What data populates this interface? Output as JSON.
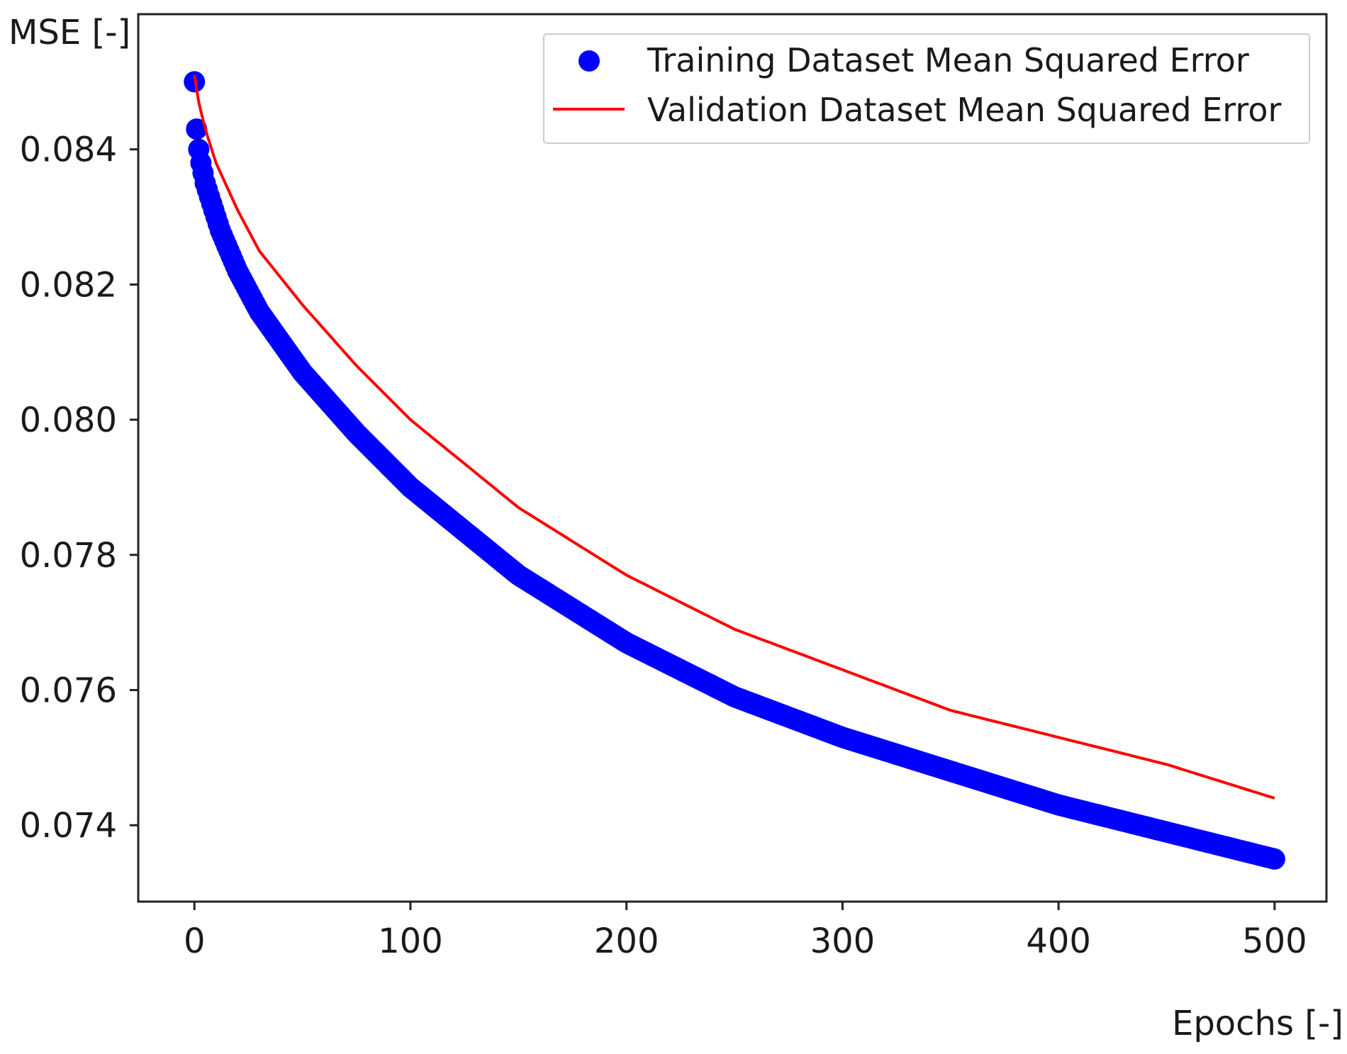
{
  "chart_data": {
    "type": "scatter+line",
    "title": "",
    "xlabel": "Epochs [-]",
    "ylabel": "MSE [-]",
    "xlim": [
      -26,
      524
    ],
    "ylim": [
      0.07287,
      0.086
    ],
    "xticks": [
      0,
      100,
      200,
      300,
      400,
      500
    ],
    "yticks": [
      0.074,
      0.076,
      0.078,
      0.08,
      0.082,
      0.084
    ],
    "ytick_labels": [
      "0.074",
      "0.076",
      "0.078",
      "0.080",
      "0.082",
      "0.084"
    ],
    "xtick_labels": [
      "0",
      "100",
      "200",
      "300",
      "400",
      "500"
    ],
    "grid": false,
    "legend_position": "top-right",
    "series": [
      {
        "name": "Training Dataset Mean Squared Error",
        "kind": "scatter",
        "color": "#0000ff",
        "x": [
          0,
          1,
          2,
          3,
          5,
          8,
          12,
          20,
          30,
          50,
          75,
          100,
          150,
          200,
          250,
          300,
          350,
          400,
          450,
          500
        ],
        "y": [
          0.085,
          0.0843,
          0.084,
          0.0838,
          0.0835,
          0.0832,
          0.0828,
          0.0822,
          0.0816,
          0.0807,
          0.0798,
          0.079,
          0.0777,
          0.0767,
          0.0759,
          0.0753,
          0.0748,
          0.0743,
          0.0739,
          0.0735
        ]
      },
      {
        "name": "Validation Dataset Mean Squared Error",
        "kind": "line",
        "color": "#ff0000",
        "x": [
          0,
          2,
          5,
          10,
          20,
          30,
          50,
          75,
          100,
          150,
          200,
          250,
          300,
          350,
          400,
          450,
          500
        ],
        "y": [
          0.0851,
          0.0847,
          0.0843,
          0.0838,
          0.0831,
          0.0825,
          0.0817,
          0.0808,
          0.08,
          0.0787,
          0.0777,
          0.0769,
          0.0763,
          0.0757,
          0.0753,
          0.0749,
          0.0744
        ]
      }
    ]
  }
}
